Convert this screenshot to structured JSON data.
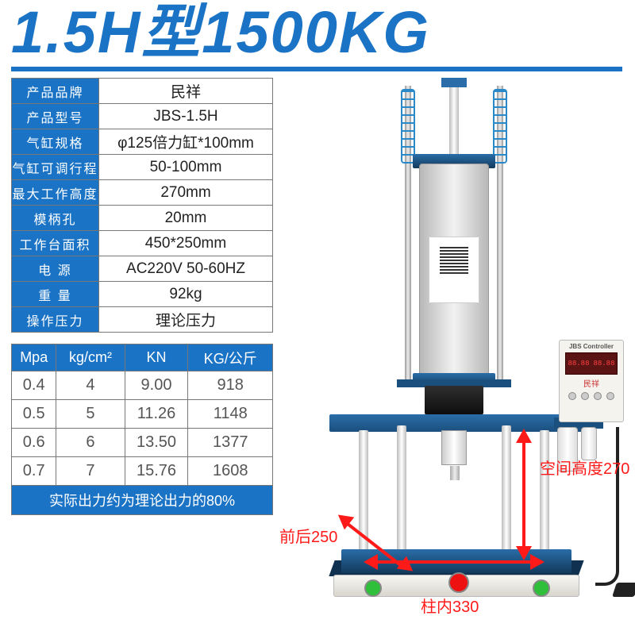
{
  "title": "1.5H型1500KG",
  "accent_color": "#1b73c5",
  "spec_table": {
    "rows": [
      {
        "label": "产品品牌",
        "value": "民祥"
      },
      {
        "label": "产品型号",
        "value": "JBS-1.5H"
      },
      {
        "label": "气缸规格",
        "value": "φ125倍力缸*100mm"
      },
      {
        "label": "气缸可调行程",
        "value": "50-100mm"
      },
      {
        "label": "最大工作高度",
        "value": "270mm"
      },
      {
        "label": "模柄孔",
        "value": "20mm"
      },
      {
        "label": "工作台面积",
        "value": "450*250mm"
      },
      {
        "label": "电  源",
        "value": "AC220V  50-60HZ"
      },
      {
        "label": "重  量",
        "value": "92kg"
      },
      {
        "label": "操作压力",
        "value": "理论压力"
      }
    ]
  },
  "pressure_table": {
    "headers": [
      "Mpa",
      "kg/cm²",
      "KN",
      "KG/公斤"
    ],
    "rows": [
      [
        "0.4",
        "4",
        "9.00",
        "918"
      ],
      [
        "0.5",
        "5",
        "11.26",
        "1148"
      ],
      [
        "0.6",
        "6",
        "13.50",
        "1377"
      ],
      [
        "0.7",
        "7",
        "15.76",
        "1608"
      ]
    ]
  },
  "note": "实际出力约为理论出力的80%",
  "controller": {
    "title": "JBS Controller",
    "brand": "民祥",
    "d1": "88.88",
    "d2": "88.88"
  },
  "dimensions": {
    "height_label": "空间高度270",
    "depth_label": "前后250",
    "width_label": "柱内330"
  }
}
